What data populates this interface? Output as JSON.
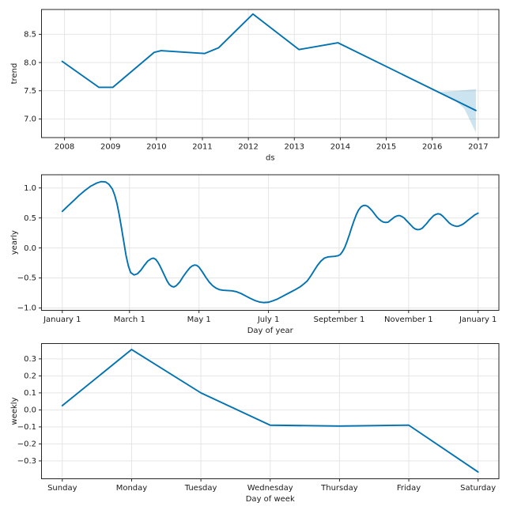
{
  "figure": {
    "background": "#ffffff"
  },
  "colors": {
    "line": "#0072B2",
    "band_fill": "#0072B2",
    "band_opacity": 0.2,
    "grid": "#e5e5e5",
    "spine": "#262626",
    "text": "#1a1a1a"
  },
  "chart_data": [
    {
      "type": "line",
      "name": "trend",
      "title": "",
      "xlabel": "ds",
      "ylabel": "trend",
      "grid": true,
      "legend_position": "none",
      "xlim": [
        2007.5,
        2017.45
      ],
      "ylim": [
        6.67,
        8.94
      ],
      "xticks": {
        "values": [
          2008,
          2009,
          2010,
          2011,
          2012,
          2013,
          2014,
          2015,
          2016,
          2017
        ],
        "labels": [
          "2008",
          "2009",
          "2010",
          "2011",
          "2012",
          "2013",
          "2014",
          "2015",
          "2016",
          "2017"
        ]
      },
      "yticks": {
        "values": [
          7.0,
          7.5,
          8.0,
          8.5
        ],
        "labels": [
          "7.0",
          "7.5",
          "8.0",
          "8.5"
        ]
      },
      "series": [
        {
          "name": "trend",
          "x": [
            2007.95,
            2008.75,
            2009.05,
            2009.95,
            2010.1,
            2011.05,
            2011.35,
            2012.1,
            2013.1,
            2013.95,
            2016.13,
            2016.95
          ],
          "y": [
            8.02,
            7.56,
            7.56,
            8.18,
            8.21,
            8.16,
            8.26,
            8.86,
            8.23,
            8.35,
            7.478,
            7.15
          ]
        }
      ],
      "band": {
        "x": [
          2016.13,
          2016.3,
          2016.5,
          2016.7,
          2016.95
        ],
        "upper": [
          7.478,
          7.487,
          7.497,
          7.51,
          7.53
        ],
        "lower": [
          7.478,
          7.42,
          7.33,
          7.18,
          6.76
        ]
      }
    },
    {
      "type": "line",
      "name": "yearly",
      "title": "",
      "xlabel": "Day of year",
      "ylabel": "yearly",
      "grid": true,
      "legend_position": "none",
      "xlim": [
        -18.25,
        383.25
      ],
      "ylim": [
        -1.04,
        1.22
      ],
      "xticks": {
        "values": [
          0,
          59,
          120,
          181,
          243,
          304,
          365
        ],
        "labels": [
          "January 1",
          "March 1",
          "May 1",
          "July 1",
          "September 1",
          "November 1",
          "January 1"
        ]
      },
      "yticks": {
        "values": [
          -1.0,
          -0.5,
          0.0,
          0.5,
          1.0
        ],
        "labels": [
          "−1.0",
          "−0.5",
          "0.0",
          "0.5",
          "1.0"
        ]
      },
      "series": [
        {
          "name": "yearly",
          "x": [
            0,
            5,
            10,
            15,
            20,
            25,
            30,
            34,
            38,
            41,
            44,
            46,
            48,
            50,
            52,
            54,
            56,
            58,
            60,
            63,
            66,
            69,
            72,
            75,
            78,
            80,
            82,
            84,
            86,
            88,
            90,
            92,
            94,
            96,
            98,
            100,
            103,
            106,
            109,
            112,
            114,
            116,
            118,
            120,
            123,
            126,
            129,
            132,
            135,
            138,
            141,
            145,
            149,
            153,
            157,
            161,
            165,
            169,
            173,
            177,
            181,
            185,
            189,
            193,
            197,
            201,
            205,
            209,
            212,
            215,
            218,
            221,
            224,
            227,
            230,
            233,
            236,
            239,
            242,
            244,
            246,
            248,
            250,
            252,
            254,
            256,
            258,
            260,
            262,
            264,
            266,
            268,
            270,
            272,
            274,
            276,
            278,
            280,
            282,
            284,
            286,
            288,
            290,
            292,
            294,
            296,
            298,
            300,
            302,
            304,
            306,
            308,
            310,
            312,
            314,
            316,
            318,
            320,
            322,
            324,
            326,
            328,
            330,
            332,
            334,
            336,
            338,
            340,
            342,
            344,
            346,
            348,
            350,
            352,
            354,
            356,
            358,
            360,
            362,
            365
          ],
          "y": [
            0.61,
            0.7,
            0.79,
            0.88,
            0.96,
            1.03,
            1.08,
            1.105,
            1.1,
            1.06,
            0.98,
            0.88,
            0.74,
            0.55,
            0.33,
            0.1,
            -0.13,
            -0.3,
            -0.41,
            -0.45,
            -0.43,
            -0.37,
            -0.29,
            -0.22,
            -0.18,
            -0.17,
            -0.19,
            -0.24,
            -0.31,
            -0.39,
            -0.47,
            -0.55,
            -0.61,
            -0.64,
            -0.65,
            -0.63,
            -0.57,
            -0.48,
            -0.4,
            -0.33,
            -0.3,
            -0.285,
            -0.29,
            -0.32,
            -0.4,
            -0.49,
            -0.57,
            -0.63,
            -0.67,
            -0.695,
            -0.705,
            -0.71,
            -0.715,
            -0.73,
            -0.76,
            -0.8,
            -0.84,
            -0.875,
            -0.9,
            -0.91,
            -0.905,
            -0.88,
            -0.85,
            -0.81,
            -0.77,
            -0.73,
            -0.69,
            -0.645,
            -0.6,
            -0.55,
            -0.47,
            -0.38,
            -0.29,
            -0.22,
            -0.17,
            -0.15,
            -0.145,
            -0.14,
            -0.13,
            -0.11,
            -0.06,
            0.01,
            0.11,
            0.22,
            0.34,
            0.45,
            0.55,
            0.63,
            0.68,
            0.705,
            0.71,
            0.695,
            0.66,
            0.62,
            0.57,
            0.52,
            0.48,
            0.45,
            0.43,
            0.425,
            0.43,
            0.46,
            0.49,
            0.52,
            0.535,
            0.54,
            0.525,
            0.5,
            0.46,
            0.42,
            0.38,
            0.34,
            0.315,
            0.305,
            0.31,
            0.33,
            0.37,
            0.41,
            0.46,
            0.5,
            0.54,
            0.56,
            0.57,
            0.56,
            0.53,
            0.49,
            0.45,
            0.41,
            0.385,
            0.37,
            0.36,
            0.365,
            0.38,
            0.4,
            0.43,
            0.46,
            0.49,
            0.52,
            0.55,
            0.58
          ]
        }
      ]
    },
    {
      "type": "line",
      "name": "weekly",
      "title": "",
      "xlabel": "Day of week",
      "ylabel": "weekly",
      "grid": true,
      "legend_position": "none",
      "categories": [
        "Sunday",
        "Monday",
        "Tuesday",
        "Wednesday",
        "Thursday",
        "Friday",
        "Saturday"
      ],
      "xlim": [
        -0.3,
        6.3
      ],
      "ylim": [
        -0.405,
        0.39
      ],
      "xticks": {
        "values": [
          0,
          1,
          2,
          3,
          4,
          5,
          6
        ],
        "labels": [
          "Sunday",
          "Monday",
          "Tuesday",
          "Wednesday",
          "Thursday",
          "Friday",
          "Saturday"
        ]
      },
      "yticks": {
        "values": [
          -0.3,
          -0.2,
          -0.1,
          0.0,
          0.1,
          0.2,
          0.3
        ],
        "labels": [
          "−0.3",
          "−0.2",
          "−0.1",
          "0.0",
          "0.1",
          "0.2",
          "0.3"
        ]
      },
      "series": [
        {
          "name": "weekly",
          "x": [
            0,
            1,
            2,
            3,
            4,
            5,
            6
          ],
          "y": [
            0.025,
            0.355,
            0.1,
            -0.09,
            -0.095,
            -0.09,
            -0.365
          ]
        }
      ]
    }
  ]
}
